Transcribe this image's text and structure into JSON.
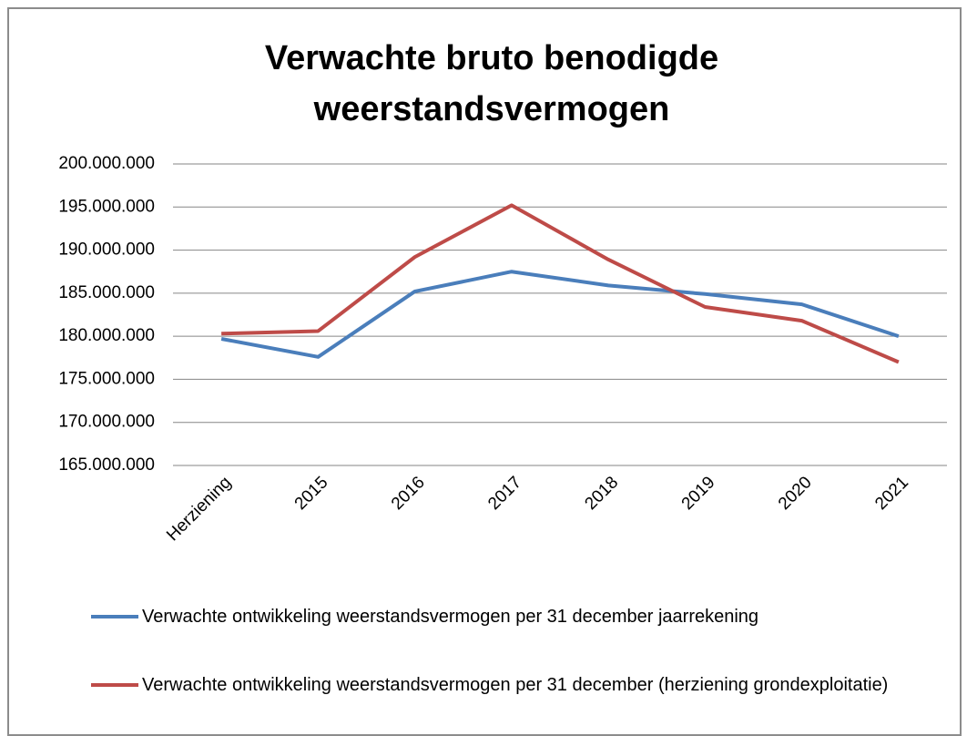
{
  "chart_data": {
    "type": "line",
    "title": "Verwachte bruto benodigde weerstandsvermogen",
    "categories": [
      "Herziening",
      "2015",
      "2016",
      "2017",
      "2018",
      "2019",
      "2020",
      "2021"
    ],
    "series": [
      {
        "name": "Verwachte ontwikkeling weerstandsvermogen per 31 december jaarrekening",
        "color": "#4a7ebb",
        "values": [
          179700000,
          177600000,
          185200000,
          187500000,
          185900000,
          184900000,
          183700000,
          180000000
        ]
      },
      {
        "name": "Verwachte ontwikkeling weerstandsvermogen per 31 december (herziening grondexploitatie)",
        "color": "#be4b48",
        "values": [
          180300000,
          180600000,
          189200000,
          195200000,
          188900000,
          183400000,
          181800000,
          177000000
        ]
      }
    ],
    "ylim": [
      165000000,
      200000000
    ],
    "yticks": [
      {
        "value": 165000000,
        "label": "165.000.000"
      },
      {
        "value": 170000000,
        "label": "170.000.000"
      },
      {
        "value": 175000000,
        "label": "175.000.000"
      },
      {
        "value": 180000000,
        "label": "180.000.000"
      },
      {
        "value": 185000000,
        "label": "185.000.000"
      },
      {
        "value": 190000000,
        "label": "190.000.000"
      },
      {
        "value": 195000000,
        "label": "195.000.000"
      },
      {
        "value": 200000000,
        "label": "200.000.000"
      }
    ],
    "grid": true,
    "legend": "bottom"
  }
}
